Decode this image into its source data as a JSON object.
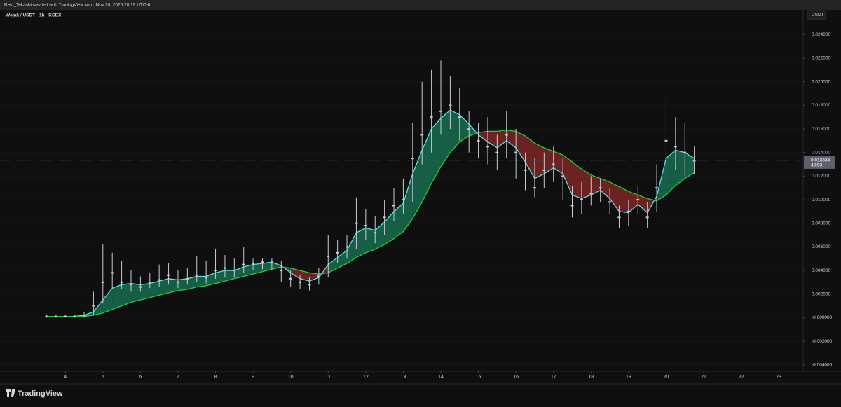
{
  "header": "Rekt_Tekashi created with TradingView.com, Nov 20, 2025 20:19 UTC-6",
  "chart_data": {
    "type": "candlestick",
    "title": "Wojak / USDT · 1h · KCEX",
    "y_unit": "USDT",
    "brand": "TradingView",
    "x": [
      3.5,
      3.75,
      4,
      4.25,
      4.5,
      4.75,
      5,
      5.25,
      5.5,
      5.75,
      6,
      6.25,
      6.5,
      6.75,
      7,
      7.25,
      7.5,
      7.75,
      8,
      8.25,
      8.5,
      8.75,
      9,
      9.25,
      9.5,
      9.75,
      10,
      10.25,
      10.5,
      10.75,
      11,
      11.25,
      11.5,
      11.75,
      12,
      12.25,
      12.5,
      12.75,
      13,
      13.25,
      13.5,
      13.75,
      14,
      14.25,
      14.5,
      14.75,
      15,
      15.25,
      15.5,
      15.75,
      16,
      16.25,
      16.5,
      16.75,
      17,
      17.25,
      17.5,
      17.75,
      18,
      18.25,
      18.5,
      18.75,
      19,
      19.25,
      19.5,
      19.75,
      20,
      20.25,
      20.5,
      20.75
    ],
    "close": [
      0.0001,
      0.0001,
      0.0001,
      0.0001,
      0.0002,
      0.001,
      0.003,
      0.0038,
      0.003,
      0.0028,
      0.0026,
      0.003,
      0.0032,
      0.0036,
      0.003,
      0.0033,
      0.0036,
      0.0034,
      0.004,
      0.0042,
      0.004,
      0.0045,
      0.0046,
      0.0047,
      0.0047,
      0.004,
      0.0033,
      0.003,
      0.0028,
      0.0035,
      0.0052,
      0.0055,
      0.006,
      0.008,
      0.0078,
      0.0072,
      0.0085,
      0.0095,
      0.01,
      0.0135,
      0.0155,
      0.017,
      0.0175,
      0.018,
      0.017,
      0.016,
      0.015,
      0.0145,
      0.014,
      0.0155,
      0.014,
      0.0125,
      0.011,
      0.0125,
      0.013,
      0.012,
      0.0095,
      0.01,
      0.0105,
      0.011,
      0.0098,
      0.0085,
      0.009,
      0.01,
      0.0085,
      0.011,
      0.015,
      0.0145,
      0.014,
      0.0133
    ],
    "high": [
      0.0002,
      0.0002,
      0.0002,
      0.0002,
      0.0005,
      0.0022,
      0.0062,
      0.0055,
      0.0048,
      0.004,
      0.0035,
      0.0038,
      0.0045,
      0.0046,
      0.004,
      0.0042,
      0.0052,
      0.0048,
      0.0058,
      0.0053,
      0.005,
      0.006,
      0.005,
      0.005,
      0.005,
      0.0048,
      0.004,
      0.0036,
      0.0034,
      0.0042,
      0.007,
      0.0066,
      0.007,
      0.0102,
      0.0092,
      0.0086,
      0.01,
      0.011,
      0.0118,
      0.0165,
      0.02,
      0.021,
      0.0218,
      0.0205,
      0.0195,
      0.0175,
      0.0165,
      0.017,
      0.0155,
      0.0175,
      0.016,
      0.014,
      0.0135,
      0.014,
      0.0145,
      0.0135,
      0.0112,
      0.0115,
      0.012,
      0.0118,
      0.011,
      0.0095,
      0.01,
      0.0112,
      0.0098,
      0.013,
      0.0187,
      0.017,
      0.0165,
      0.0145
    ],
    "low": [
      0,
      0,
      0,
      0,
      0,
      0.0002,
      0.0012,
      0.0025,
      0.0024,
      0.0022,
      0.0022,
      0.0025,
      0.0026,
      0.0028,
      0.0025,
      0.0028,
      0.003,
      0.0029,
      0.0033,
      0.0034,
      0.0034,
      0.0038,
      0.004,
      0.0041,
      0.0041,
      0.003,
      0.0026,
      0.0024,
      0.0023,
      0.0028,
      0.0034,
      0.0046,
      0.005,
      0.0058,
      0.0066,
      0.0063,
      0.007,
      0.0082,
      0.0088,
      0.0098,
      0.013,
      0.014,
      0.0155,
      0.016,
      0.015,
      0.014,
      0.0135,
      0.013,
      0.0125,
      0.0135,
      0.0118,
      0.0108,
      0.0102,
      0.011,
      0.0115,
      0.01,
      0.0085,
      0.0088,
      0.0095,
      0.0098,
      0.0088,
      0.0076,
      0.0078,
      0.0088,
      0.0076,
      0.009,
      0.0115,
      0.0125,
      0.012,
      0.0122
    ],
    "candle_color": "#c8cbd2",
    "ribbon": {
      "fast": [
        0.0001,
        0.0001,
        0.0001,
        0.0001,
        0.0002,
        0.0005,
        0.0015,
        0.0025,
        0.0028,
        0.0029,
        0.0028,
        0.0029,
        0.0031,
        0.0033,
        0.0032,
        0.0033,
        0.0035,
        0.0035,
        0.0038,
        0.004,
        0.004,
        0.0043,
        0.0045,
        0.0046,
        0.0047,
        0.0044,
        0.0038,
        0.0033,
        0.0031,
        0.0034,
        0.0045,
        0.0051,
        0.0057,
        0.0072,
        0.0076,
        0.0074,
        0.0081,
        0.009,
        0.0097,
        0.0122,
        0.0142,
        0.016,
        0.0169,
        0.0176,
        0.0172,
        0.0164,
        0.0155,
        0.0149,
        0.0144,
        0.015,
        0.0144,
        0.0132,
        0.0118,
        0.0122,
        0.0127,
        0.0122,
        0.0104,
        0.0101,
        0.0104,
        0.0108,
        0.0101,
        0.009,
        0.0089,
        0.0096,
        0.0089,
        0.0103,
        0.0135,
        0.0142,
        0.014,
        0.0135
      ],
      "slow": [
        0.0001,
        0.0001,
        0.0001,
        0.0001,
        0.0001,
        0.0002,
        0.0004,
        0.0007,
        0.001,
        0.0013,
        0.0015,
        0.0017,
        0.0019,
        0.0021,
        0.0023,
        0.0024,
        0.0026,
        0.0027,
        0.0029,
        0.0031,
        0.0033,
        0.0035,
        0.0037,
        0.0039,
        0.0041,
        0.0043,
        0.0042,
        0.004,
        0.0038,
        0.0037,
        0.0038,
        0.0042,
        0.0046,
        0.0051,
        0.0055,
        0.0058,
        0.0062,
        0.0067,
        0.0073,
        0.0084,
        0.0098,
        0.0114,
        0.0128,
        0.014,
        0.0149,
        0.0154,
        0.0157,
        0.0158,
        0.0158,
        0.0159,
        0.0158,
        0.0154,
        0.0148,
        0.0144,
        0.0141,
        0.0138,
        0.0132,
        0.0126,
        0.0121,
        0.0118,
        0.0115,
        0.0111,
        0.0107,
        0.0104,
        0.0101,
        0.0099,
        0.0104,
        0.0112,
        0.0118,
        0.0123
      ],
      "up_color": "#1fbf8a",
      "down_color": "#e03a3a",
      "fast_color": "#5fe0e8",
      "slow_color": "#19d13a"
    },
    "last_price": 0.013334,
    "countdown": "40:53",
    "xlim": [
      2.26,
      23.65
    ],
    "xticks": [
      4,
      5,
      6,
      7,
      8,
      9,
      10,
      11,
      12,
      13,
      14,
      15,
      16,
      17,
      18,
      19,
      20,
      21,
      22,
      23
    ],
    "ylim": [
      -0.00455,
      0.0261
    ],
    "yticks": [
      {
        "value": 0.024,
        "label": "0.024000"
      },
      {
        "value": 0.022,
        "label": "0.022000"
      },
      {
        "value": 0.02,
        "label": "0.020000"
      },
      {
        "value": 0.018,
        "label": "0.018000"
      },
      {
        "value": 0.016,
        "label": "0.016000"
      },
      {
        "value": 0.014,
        "label": "0.014000"
      },
      {
        "value": 0.012,
        "label": "0.012000"
      },
      {
        "value": 0.01,
        "label": "0.010000"
      },
      {
        "value": 0.008,
        "label": "0.008000"
      },
      {
        "value": 0.006,
        "label": "0.006000"
      },
      {
        "value": 0.004,
        "label": "0.004000"
      },
      {
        "value": 0.002,
        "label": "0.002000"
      },
      {
        "value": 0,
        "label": "-0.000000"
      },
      {
        "value": -0.002,
        "label": "-0.002000"
      },
      {
        "value": -0.004,
        "label": "-0.004000"
      }
    ]
  }
}
